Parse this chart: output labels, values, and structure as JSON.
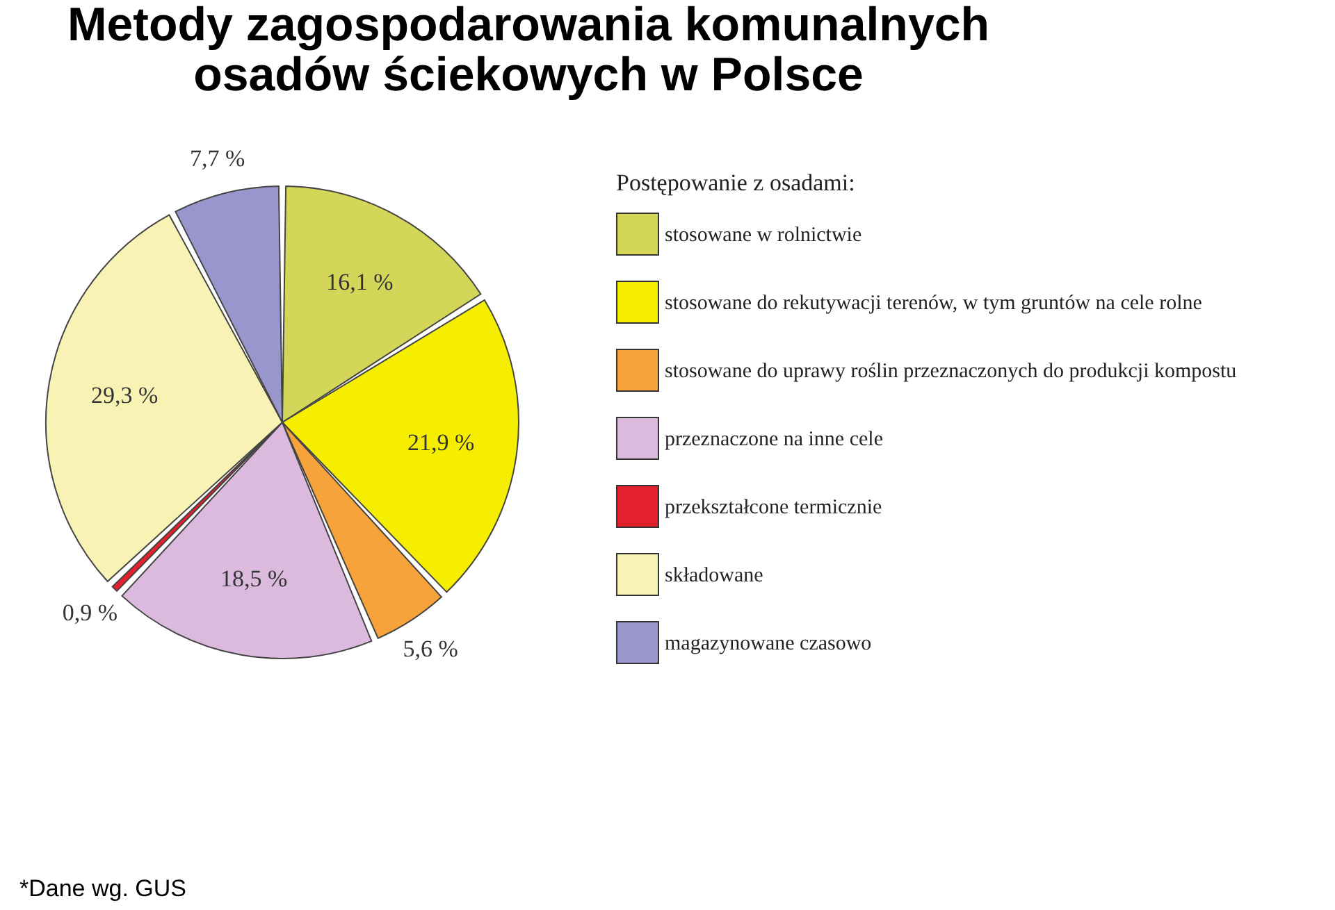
{
  "chart_data": {
    "type": "pie",
    "title": "Metody zagospodarowania komunalnych osadów ściekowych w Polsce",
    "legend_title": "Postępowanie z osadami:",
    "legend": "right",
    "categories": [
      "stosowane w rolnictwie",
      "stosowane do rekutywacji terenów, w tym gruntów na cele rolne",
      "stosowane do uprawy roślin przeznaczonych do produkcji kompostu",
      "przeznaczone na inne cele",
      "przekształcone termicznie",
      "składowane",
      "magazynowane czasowo"
    ],
    "values": [
      16.1,
      21.9,
      5.6,
      18.5,
      0.9,
      29.3,
      7.7
    ],
    "value_labels": [
      "16,1 %",
      "21,9 %",
      "5,6 %",
      "18,5 %",
      "0,9 %",
      "29,3 %",
      "7,7 %"
    ],
    "colors": [
      "#d4d65a",
      "#f5ee00",
      "#f5a33a",
      "#dcbade",
      "#e3202b",
      "#f8f3b4",
      "#9896cc"
    ],
    "annotations": [
      "*Dane wg. GUS"
    ]
  }
}
